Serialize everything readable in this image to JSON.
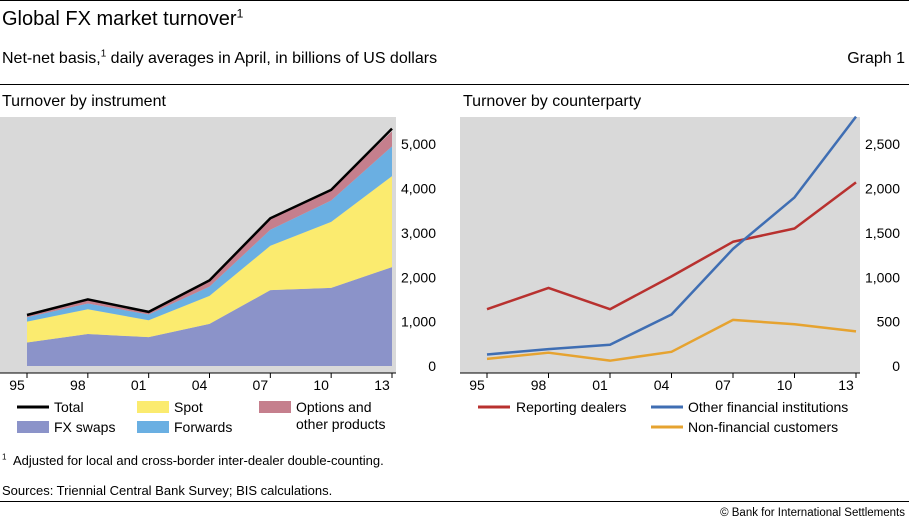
{
  "header": {
    "title": "Global FX market turnover",
    "title_sup": "1",
    "subtitle_pre": "Net-net basis,",
    "subtitle_sup": "1",
    "subtitle_post": " daily averages in April, in billions of US dollars",
    "graph_label": "Graph 1"
  },
  "footer": {
    "footnote_number": "1",
    "footnote_text": "Adjusted for local and cross-border inter-dealer double-counting.",
    "sources": "Sources: Triennial Central Bank Survey; BIS calculations.",
    "copyright": "© Bank for International Settlements"
  },
  "colors": {
    "panel_bg": "#d9d9d9",
    "fx_swaps": "#8b93c9",
    "spot": "#fbeb6f",
    "forwards": "#6aafe2",
    "options": "#c57f8d",
    "total": "#000000",
    "reporting_dealers": "#b8312f",
    "other_financial": "#3f6eb3",
    "non_financial": "#e6a330"
  },
  "chart_data": [
    {
      "type": "area",
      "title": "Turnover by instrument",
      "stacked": true,
      "x": [
        "95",
        "98",
        "01",
        "04",
        "07",
        "10",
        "13"
      ],
      "ylim": [
        0,
        5500
      ],
      "yticks": [
        "0",
        "1,000",
        "2,000",
        "3,000",
        "4,000",
        "5,000"
      ],
      "yaxis_side": "right",
      "grid": false,
      "series": [
        {
          "name": "FX swaps",
          "values": [
            530,
            720,
            650,
            950,
            1710,
            1760,
            2230
          ]
        },
        {
          "name": "Spot",
          "values": [
            470,
            560,
            380,
            630,
            1000,
            1490,
            2050
          ]
        },
        {
          "name": "Forwards",
          "values": [
            100,
            130,
            130,
            210,
            360,
            480,
            670
          ]
        },
        {
          "name": "Options and other products",
          "values": [
            50,
            90,
            60,
            140,
            260,
            240,
            340
          ]
        },
        {
          "name": "Total",
          "values": [
            1150,
            1500,
            1220,
            1930,
            3330,
            3970,
            5350
          ],
          "style": "line"
        }
      ],
      "legend": [
        "Total",
        "FX swaps",
        "Spot",
        "Forwards",
        "Options and",
        "other products"
      ]
    },
    {
      "type": "line",
      "title": "Turnover by counterparty",
      "x": [
        "95",
        "98",
        "01",
        "04",
        "07",
        "10",
        "13"
      ],
      "ylim": [
        0,
        2750
      ],
      "yticks": [
        "0",
        "500",
        "1,000",
        "1,500",
        "2,000",
        "2,500"
      ],
      "yaxis_side": "right",
      "grid": false,
      "series": [
        {
          "name": "Reporting dealers",
          "values": [
            640,
            880,
            640,
            1010,
            1400,
            1550,
            2070
          ]
        },
        {
          "name": "Other financial institutions",
          "values": [
            130,
            190,
            240,
            580,
            1320,
            1900,
            2810
          ]
        },
        {
          "name": "Non-financial customers",
          "values": [
            80,
            150,
            60,
            160,
            520,
            470,
            390
          ]
        }
      ],
      "legend": [
        "Reporting dealers",
        "Other financial institutions",
        "Non-financial customers"
      ]
    }
  ]
}
